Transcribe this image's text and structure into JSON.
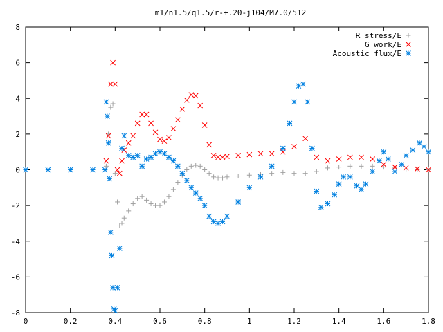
{
  "chart_data": {
    "type": "scatter",
    "title": "m1/n1.5/q1.5/r-+.20-j104/M7.0/512",
    "xlabel": "",
    "ylabel": "",
    "xlim": [
      0,
      1.8
    ],
    "ylim": [
      -8,
      8
    ],
    "xticks": [
      "0",
      "0.2",
      "0.4",
      "0.6",
      "0.8",
      "1",
      "1.2",
      "1.4",
      "1.6",
      "1.8"
    ],
    "yticks": [
      "8",
      "6",
      "4",
      "2",
      "0",
      "-2",
      "-4",
      "-6",
      "-8"
    ],
    "legend_position": "top-right",
    "grid": false,
    "series": [
      {
        "name": "R stress/E",
        "marker": "+",
        "color": "#a0a0a0",
        "x": [
          0.36,
          0.37,
          0.38,
          0.39,
          0.4,
          0.41,
          0.42,
          0.43,
          0.44,
          0.46,
          0.48,
          0.5,
          0.52,
          0.54,
          0.56,
          0.58,
          0.6,
          0.62,
          0.64,
          0.66,
          0.68,
          0.7,
          0.72,
          0.74,
          0.76,
          0.78,
          0.8,
          0.82,
          0.84,
          0.86,
          0.88,
          0.9,
          0.95,
          1.0,
          1.05,
          1.1,
          1.15,
          1.2,
          1.25,
          1.3,
          1.35,
          1.4,
          1.45,
          1.5,
          1.55,
          1.6,
          1.65,
          1.7,
          1.75,
          1.8
        ],
        "y": [
          0.2,
          2.0,
          3.5,
          3.7,
          -0.2,
          -1.8,
          -3.1,
          -3.0,
          -2.7,
          -2.3,
          -1.9,
          -1.6,
          -1.5,
          -1.7,
          -1.9,
          -2.0,
          -2.0,
          -1.8,
          -1.5,
          -1.1,
          -0.7,
          -0.3,
          0.0,
          0.2,
          0.25,
          0.2,
          0.0,
          -0.2,
          -0.4,
          -0.45,
          -0.45,
          -0.4,
          -0.35,
          -0.3,
          -0.25,
          -0.2,
          -0.15,
          -0.2,
          -0.2,
          -0.1,
          0.1,
          0.15,
          0.2,
          0.2,
          0.2,
          0.15,
          0.1,
          0.05,
          0.0,
          0.0
        ]
      },
      {
        "name": "G work/E",
        "marker": "x",
        "color": "#ff0000",
        "x": [
          0.36,
          0.37,
          0.38,
          0.39,
          0.4,
          0.41,
          0.42,
          0.43,
          0.44,
          0.46,
          0.48,
          0.5,
          0.52,
          0.54,
          0.56,
          0.58,
          0.6,
          0.62,
          0.64,
          0.66,
          0.68,
          0.7,
          0.72,
          0.74,
          0.76,
          0.78,
          0.8,
          0.82,
          0.84,
          0.86,
          0.88,
          0.9,
          0.95,
          1.0,
          1.05,
          1.1,
          1.15,
          1.2,
          1.25,
          1.3,
          1.35,
          1.4,
          1.45,
          1.5,
          1.55,
          1.6,
          1.65,
          1.7,
          1.75,
          1.8
        ],
        "y": [
          0.5,
          1.9,
          4.8,
          6.0,
          4.8,
          0.0,
          -0.2,
          0.5,
          1.1,
          1.5,
          1.9,
          2.6,
          3.1,
          3.1,
          2.6,
          2.1,
          1.7,
          1.6,
          1.8,
          2.3,
          2.8,
          3.4,
          3.9,
          4.2,
          4.15,
          3.6,
          2.5,
          1.4,
          0.8,
          0.7,
          0.7,
          0.75,
          0.8,
          0.85,
          0.9,
          0.9,
          1.0,
          1.3,
          1.75,
          0.7,
          0.5,
          0.6,
          0.7,
          0.7,
          0.6,
          0.3,
          0.15,
          0.1,
          0.05,
          0.0
        ]
      },
      {
        "name": "Acoustic flux/E",
        "marker": "*",
        "color": "#0080e0",
        "x": [
          0.0,
          0.1,
          0.2,
          0.3,
          0.355,
          0.36,
          0.365,
          0.37,
          0.375,
          0.38,
          0.385,
          0.39,
          0.395,
          0.4,
          0.41,
          0.42,
          0.43,
          0.44,
          0.46,
          0.48,
          0.5,
          0.52,
          0.54,
          0.56,
          0.58,
          0.6,
          0.62,
          0.64,
          0.66,
          0.68,
          0.7,
          0.72,
          0.74,
          0.76,
          0.78,
          0.8,
          0.82,
          0.84,
          0.86,
          0.88,
          0.9,
          0.95,
          1.0,
          1.05,
          1.1,
          1.15,
          1.18,
          1.2,
          1.22,
          1.24,
          1.26,
          1.28,
          1.3,
          1.32,
          1.35,
          1.38,
          1.4,
          1.42,
          1.45,
          1.48,
          1.5,
          1.52,
          1.55,
          1.58,
          1.6,
          1.62,
          1.65,
          1.68,
          1.7,
          1.73,
          1.76,
          1.78,
          1.8
        ],
        "y": [
          0,
          0,
          0,
          0,
          0,
          3.8,
          3.0,
          1.5,
          -0.5,
          -3.5,
          -4.8,
          -6.6,
          -7.8,
          -7.9,
          -6.6,
          -4.4,
          1.2,
          1.9,
          0.8,
          0.7,
          0.8,
          0.2,
          0.6,
          0.7,
          0.9,
          1.0,
          0.9,
          0.7,
          0.5,
          0.2,
          -0.2,
          -0.6,
          -1.0,
          -1.3,
          -1.6,
          -2.0,
          -2.6,
          -2.9,
          -3.0,
          -2.9,
          -2.6,
          -1.8,
          -1.0,
          -0.4,
          0.2,
          1.2,
          2.6,
          3.8,
          4.7,
          4.8,
          3.8,
          1.2,
          -1.2,
          -2.1,
          -1.9,
          -1.4,
          -0.8,
          -0.4,
          -0.4,
          -0.9,
          -1.1,
          -0.8,
          -0.1,
          0.5,
          1.0,
          0.6,
          -0.1,
          0.3,
          0.8,
          1.1,
          1.5,
          1.3,
          1.0
        ]
      }
    ]
  }
}
